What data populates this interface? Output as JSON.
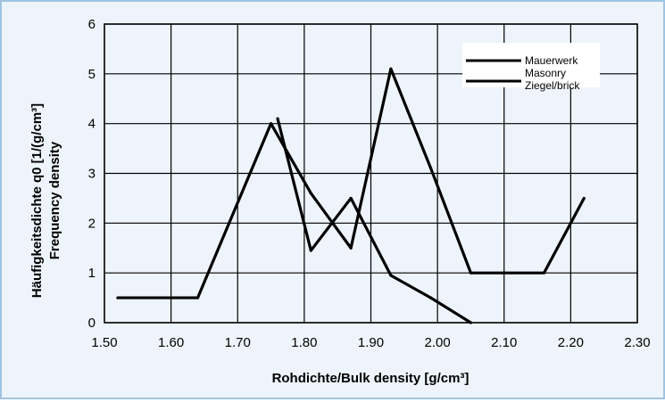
{
  "chart_data": {
    "type": "line",
    "title": "",
    "xlabel": "Rohdichte/Bulk density [g/cm³]",
    "ylabel_line1": "Häufigkeitsdichte q0 [1/(g/cm³]",
    "ylabel_line2": "Frequency density",
    "xlim": [
      1.5,
      2.3
    ],
    "ylim": [
      0,
      6
    ],
    "x_ticks": [
      "1.50",
      "1.60",
      "1.70",
      "1.80",
      "1.90",
      "2.00",
      "2.10",
      "2.20",
      "2.30"
    ],
    "y_ticks": [
      "0",
      "1",
      "2",
      "3",
      "4",
      "5",
      "6"
    ],
    "grid": true,
    "legend_position": "top-right",
    "legend": [
      "Mauerwerk",
      "Masonry",
      "Ziegel/brick"
    ],
    "series": [
      {
        "name": "Mauerwerk / Masonry",
        "color": "#000000",
        "x": [
          1.52,
          1.64,
          1.75,
          1.81,
          1.87,
          1.93,
          1.99,
          2.05,
          2.1,
          2.16,
          2.22
        ],
        "y": [
          0.5,
          0.5,
          4.0,
          2.6,
          1.5,
          5.1,
          3.1,
          1.0,
          1.0,
          1.0,
          2.5
        ]
      },
      {
        "name": "Ziegel/brick",
        "color": "#000000",
        "x": [
          1.76,
          1.81,
          1.87,
          1.93,
          1.99,
          2.05
        ],
        "y": [
          4.1,
          1.45,
          2.5,
          0.95,
          0.5,
          0.0
        ]
      }
    ]
  }
}
